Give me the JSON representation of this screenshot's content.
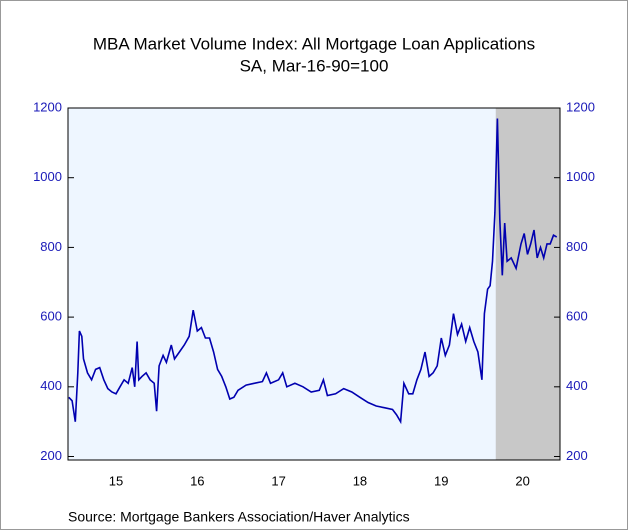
{
  "chart_data": {
    "type": "line",
    "title": "MBA Market Volume Index: All Mortgage Loan Applications",
    "subtitle": "SA, Mar-16-90=100",
    "source": "Source:  Mortgage Bankers Association/Haver Analytics",
    "x": [
      2014.92,
      2014.96,
      2015.0,
      2015.03,
      2015.05,
      2015.08,
      2015.1,
      2015.15,
      2015.2,
      2015.25,
      2015.3,
      2015.35,
      2015.4,
      2015.45,
      2015.5,
      2015.55,
      2015.6,
      2015.65,
      2015.7,
      2015.73,
      2015.76,
      2015.78,
      2015.82,
      2015.87,
      2015.92,
      2015.97,
      2016.0,
      2016.03,
      2016.08,
      2016.12,
      2016.18,
      2016.22,
      2016.28,
      2016.34,
      2016.4,
      2016.45,
      2016.5,
      2016.55,
      2016.6,
      2016.65,
      2016.7,
      2016.75,
      2016.8,
      2016.85,
      2016.9,
      2016.95,
      2017.0,
      2017.1,
      2017.2,
      2017.3,
      2017.35,
      2017.4,
      2017.5,
      2017.55,
      2017.6,
      2017.7,
      2017.8,
      2017.9,
      2018.0,
      2018.05,
      2018.1,
      2018.2,
      2018.3,
      2018.4,
      2018.5,
      2018.6,
      2018.7,
      2018.8,
      2018.9,
      2018.95,
      2019.0,
      2019.04,
      2019.1,
      2019.15,
      2019.2,
      2019.25,
      2019.3,
      2019.35,
      2019.4,
      2019.45,
      2019.5,
      2019.55,
      2019.6,
      2019.65,
      2019.7,
      2019.75,
      2019.8,
      2019.85,
      2019.9,
      2019.95,
      2020.0,
      2020.03,
      2020.07,
      2020.1,
      2020.13,
      2020.16,
      2020.19,
      2020.22,
      2020.25,
      2020.28,
      2020.31,
      2020.36,
      2020.42,
      2020.48,
      2020.52,
      2020.56,
      2020.6,
      2020.64,
      2020.68,
      2020.72,
      2020.76,
      2020.8,
      2020.84,
      2020.88,
      2020.92
    ],
    "series": [
      {
        "color": "#0000b0",
        "values": [
          370,
          360,
          300,
          440,
          560,
          545,
          480,
          440,
          420,
          450,
          455,
          420,
          395,
          385,
          380,
          400,
          420,
          410,
          455,
          400,
          530,
          420,
          430,
          440,
          420,
          410,
          330,
          460,
          490,
          470,
          520,
          480,
          500,
          520,
          545,
          620,
          560,
          570,
          540,
          540,
          500,
          450,
          430,
          400,
          365,
          370,
          390,
          405,
          410,
          415,
          440,
          410,
          420,
          440,
          400,
          410,
          400,
          385,
          390,
          420,
          375,
          380,
          395,
          385,
          370,
          355,
          345,
          340,
          335,
          320,
          300,
          410,
          380,
          380,
          420,
          450,
          500,
          430,
          440,
          460,
          540,
          490,
          520,
          610,
          550,
          580,
          530,
          570,
          530,
          500,
          420,
          610,
          680,
          690,
          760,
          900,
          1170,
          880,
          720,
          870,
          760,
          770,
          740,
          810,
          840,
          780,
          810,
          850,
          770,
          800,
          770,
          810,
          810,
          835,
          830
        ]
      }
    ],
    "recession": {
      "start": 2020.17,
      "end": 2020.96
    },
    "xlim": [
      2014.91,
      2020.96
    ],
    "xticks": [
      {
        "value": 2015.5,
        "label": "15"
      },
      {
        "value": 2016.5,
        "label": "16"
      },
      {
        "value": 2017.5,
        "label": "17"
      },
      {
        "value": 2018.5,
        "label": "18"
      },
      {
        "value": 2019.5,
        "label": "19"
      },
      {
        "value": 2020.5,
        "label": "20"
      }
    ],
    "ylim": [
      190,
      1200
    ],
    "yticks": [
      200,
      400,
      600,
      800,
      1000,
      1200
    ]
  }
}
